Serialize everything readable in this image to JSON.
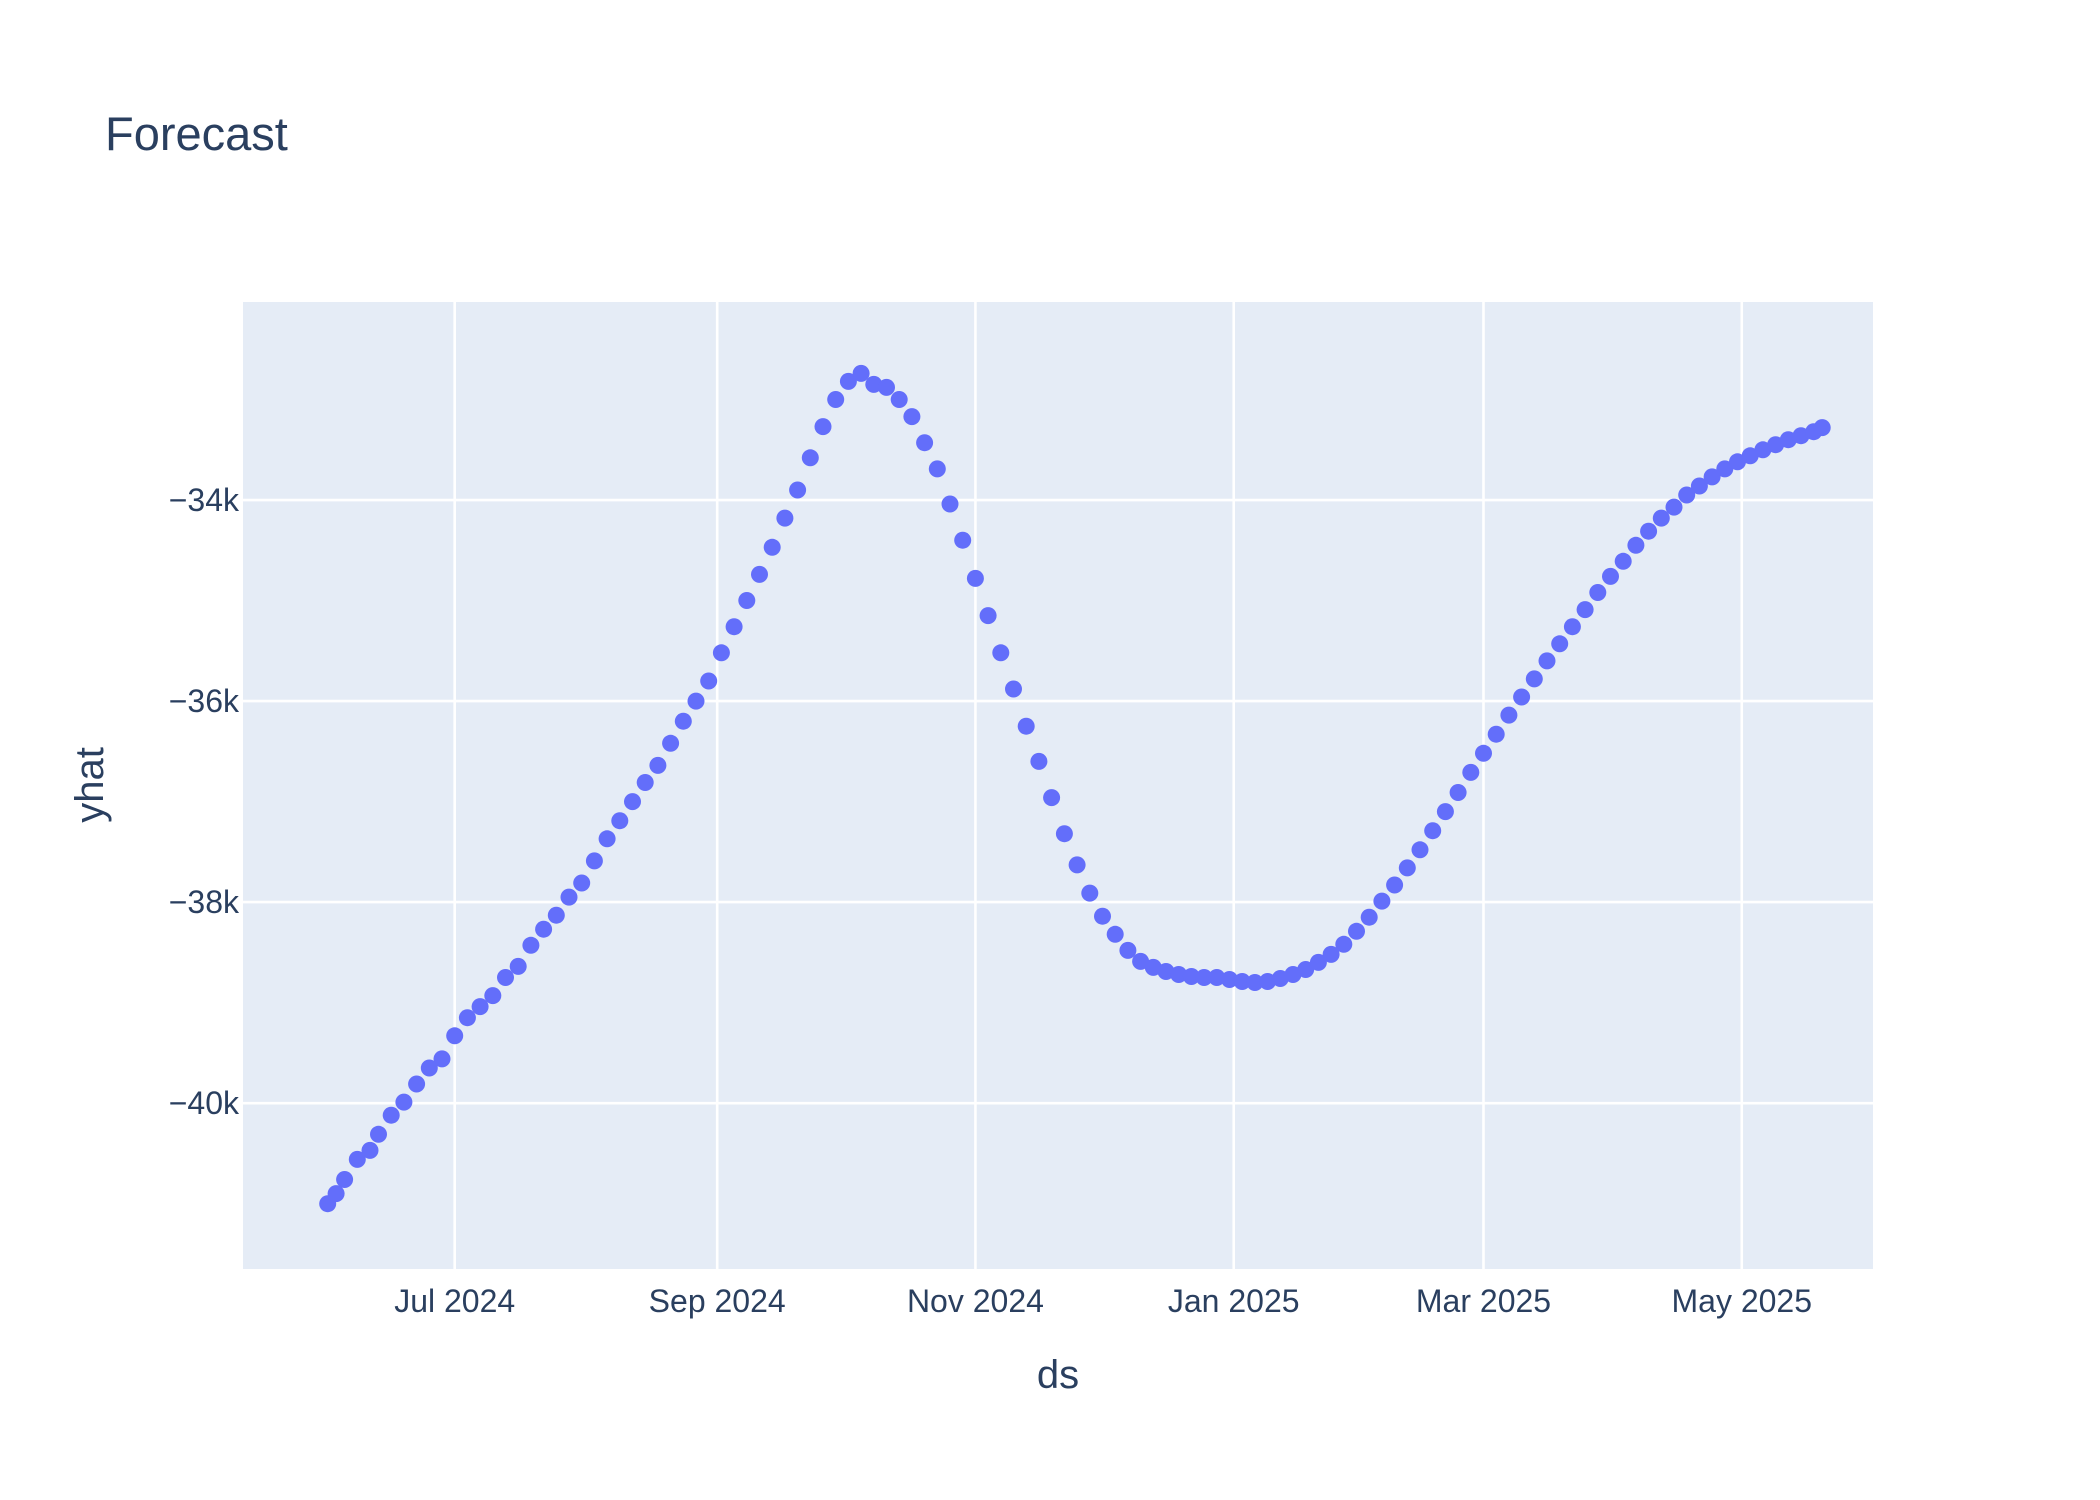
{
  "chart_data": {
    "type": "scatter",
    "title": "Forecast",
    "xlabel": "ds",
    "ylabel": "yhat",
    "x_ticks": [
      {
        "label": "Jul 2024",
        "date": "2024-07-01"
      },
      {
        "label": "Sep 2024",
        "date": "2024-09-01"
      },
      {
        "label": "Nov 2024",
        "date": "2024-11-01"
      },
      {
        "label": "Jan 2025",
        "date": "2025-01-01"
      },
      {
        "label": "Mar 2025",
        "date": "2025-03-01"
      },
      {
        "label": "May 2025",
        "date": "2025-05-01"
      }
    ],
    "y_ticks": [
      {
        "label": "−34k",
        "value": -34000
      },
      {
        "label": "−36k",
        "value": -36000
      },
      {
        "label": "−38k",
        "value": -38000
      },
      {
        "label": "−40k",
        "value": -40000
      }
    ],
    "xlim": [
      "2024-05-12",
      "2025-06-01"
    ],
    "ylim": [
      -41650,
      -32030
    ],
    "grid": true,
    "colors": {
      "marker": "#636efa",
      "plot_bg": "#e5ecf6",
      "grid": "#ffffff",
      "text": "#2a3f5f"
    },
    "series": [
      {
        "x": [
          "2024-06-01",
          "2024-06-03",
          "2024-06-05",
          "2024-06-08",
          "2024-06-11",
          "2024-06-13",
          "2024-06-16",
          "2024-06-19",
          "2024-06-22",
          "2024-06-25",
          "2024-06-28",
          "2024-07-01",
          "2024-07-04",
          "2024-07-07",
          "2024-07-10",
          "2024-07-13",
          "2024-07-16",
          "2024-07-19",
          "2024-07-22",
          "2024-07-25",
          "2024-07-28",
          "2024-07-31",
          "2024-08-03",
          "2024-08-06",
          "2024-08-09",
          "2024-08-12",
          "2024-08-15",
          "2024-08-18",
          "2024-08-21",
          "2024-08-24",
          "2024-08-27",
          "2024-08-30",
          "2024-09-02",
          "2024-09-05",
          "2024-09-08",
          "2024-09-11",
          "2024-09-14",
          "2024-09-17",
          "2024-09-20",
          "2024-09-23",
          "2024-09-26",
          "2024-09-29",
          "2024-10-02",
          "2024-10-05",
          "2024-10-08",
          "2024-10-11",
          "2024-10-14",
          "2024-10-17",
          "2024-10-20",
          "2024-10-23",
          "2024-10-26",
          "2024-10-29",
          "2024-11-01",
          "2024-11-04",
          "2024-11-07",
          "2024-11-10",
          "2024-11-13",
          "2024-11-16",
          "2024-11-19",
          "2024-11-22",
          "2024-11-25",
          "2024-11-28",
          "2024-12-01",
          "2024-12-04",
          "2024-12-07",
          "2024-12-10",
          "2024-12-13",
          "2024-12-16",
          "2024-12-19",
          "2024-12-22",
          "2024-12-25",
          "2024-12-28",
          "2024-12-31",
          "2025-01-03",
          "2025-01-06",
          "2025-01-09",
          "2025-01-12",
          "2025-01-15",
          "2025-01-18",
          "2025-01-21",
          "2025-01-24",
          "2025-01-27",
          "2025-01-30",
          "2025-02-02",
          "2025-02-05",
          "2025-02-08",
          "2025-02-11",
          "2025-02-14",
          "2025-02-17",
          "2025-02-20",
          "2025-02-23",
          "2025-02-26",
          "2025-03-01",
          "2025-03-04",
          "2025-03-07",
          "2025-03-10",
          "2025-03-13",
          "2025-03-16",
          "2025-03-19",
          "2025-03-22",
          "2025-03-25",
          "2025-03-28",
          "2025-03-31",
          "2025-04-03",
          "2025-04-06",
          "2025-04-09",
          "2025-04-12",
          "2025-04-15",
          "2025-04-18",
          "2025-04-21",
          "2025-04-24",
          "2025-04-27",
          "2025-04-30",
          "2025-05-03",
          "2025-05-06",
          "2025-05-09",
          "2025-05-12",
          "2025-05-15",
          "2025-05-18",
          "2025-05-20"
        ],
        "y": [
          -41000,
          -40900,
          -40760,
          -40560,
          -40470,
          -40310,
          -40120,
          -39990,
          -39810,
          -39650,
          -39560,
          -39330,
          -39150,
          -39040,
          -38930,
          -38750,
          -38640,
          -38430,
          -38270,
          -38130,
          -37950,
          -37810,
          -37590,
          -37370,
          -37190,
          -37000,
          -36810,
          -36640,
          -36420,
          -36200,
          -36000,
          -35800,
          -35520,
          -35260,
          -35000,
          -34740,
          -34470,
          -34180,
          -33900,
          -33580,
          -33270,
          -33000,
          -32820,
          -32740,
          -32850,
          -32880,
          -33000,
          -33170,
          -33430,
          -33690,
          -34040,
          -34400,
          -34780,
          -35150,
          -35520,
          -35880,
          -36250,
          -36600,
          -36960,
          -37320,
          -37630,
          -37910,
          -38140,
          -38320,
          -38480,
          -38590,
          -38650,
          -38690,
          -38720,
          -38740,
          -38750,
          -38750,
          -38770,
          -38790,
          -38800,
          -38790,
          -38760,
          -38720,
          -38670,
          -38600,
          -38520,
          -38420,
          -38290,
          -38150,
          -37990,
          -37830,
          -37660,
          -37480,
          -37290,
          -37100,
          -36910,
          -36710,
          -36520,
          -36330,
          -36140,
          -35960,
          -35780,
          -35600,
          -35430,
          -35260,
          -35090,
          -34920,
          -34760,
          -34610,
          -34450,
          -34310,
          -34180,
          -34070,
          -33950,
          -33860,
          -33770,
          -33690,
          -33620,
          -33560,
          -33500,
          -33450,
          -33400,
          -33360,
          -33320,
          -33280
        ]
      }
    ]
  }
}
